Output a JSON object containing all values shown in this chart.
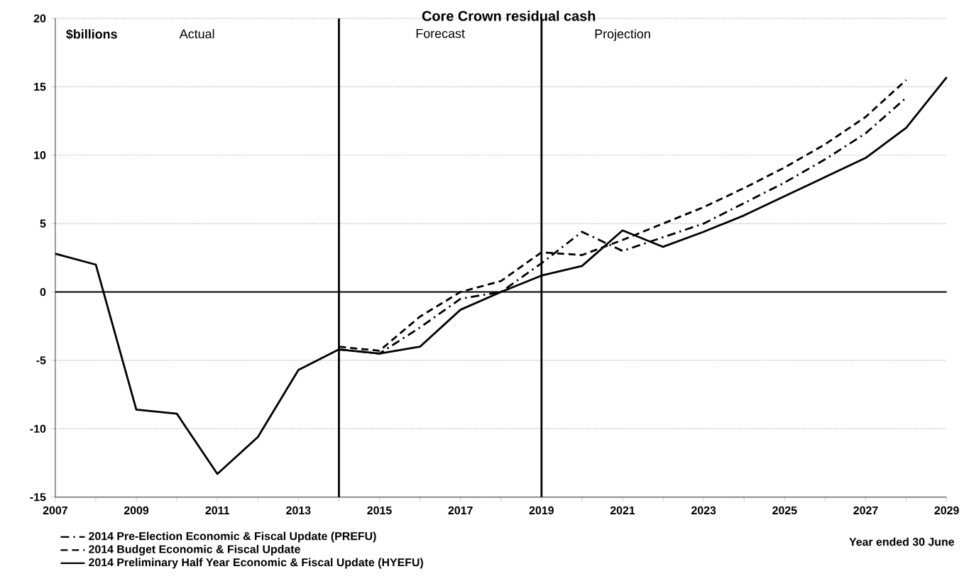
{
  "chart_data": {
    "type": "line",
    "title": "Core Crown residual cash",
    "ylabel": "$billions",
    "xlabel": "Year ended 30 June",
    "x": [
      2007,
      2008,
      2009,
      2010,
      2011,
      2012,
      2013,
      2014,
      2015,
      2016,
      2017,
      2018,
      2019,
      2020,
      2021,
      2022,
      2023,
      2024,
      2025,
      2026,
      2027,
      2028,
      2029
    ],
    "series": [
      {
        "name": "2014 Pre-Election Economic & Fiscal Update (PREFU)",
        "color": "#000000",
        "line_style": "dashdot",
        "values": [
          null,
          null,
          null,
          null,
          null,
          null,
          null,
          -4.2,
          -4.5,
          -2.6,
          -0.5,
          0.0,
          2.1,
          4.4,
          3.0,
          4.0,
          5.0,
          6.5,
          8.0,
          9.7,
          11.6,
          14.2,
          null
        ]
      },
      {
        "name": "2014 Budget Economic & Fiscal Update",
        "color": "#000000",
        "line_style": "dashed",
        "values": [
          null,
          null,
          null,
          null,
          null,
          null,
          null,
          -4.0,
          -4.3,
          -1.8,
          0.0,
          0.8,
          2.9,
          2.7,
          3.8,
          5.0,
          6.2,
          7.6,
          9.1,
          10.8,
          12.8,
          15.5,
          null
        ]
      },
      {
        "name": "2014 Preliminary  Half Year Economic & Fiscal Update (HYEFU)",
        "color": "#000000",
        "line_style": "solid",
        "values": [
          2.8,
          2.0,
          -8.6,
          -8.9,
          -13.3,
          -10.6,
          -5.7,
          -4.2,
          -4.5,
          -4.0,
          -1.3,
          0.0,
          1.2,
          1.9,
          4.5,
          3.3,
          4.4,
          5.6,
          7.0,
          8.4,
          9.8,
          12.0,
          15.7
        ]
      }
    ],
    "xlim": [
      2007,
      2029
    ],
    "xticks": [
      2007,
      {
        "value": 2008,
        "label": null
      },
      2009,
      {
        "value": 2010,
        "label": null
      },
      2011,
      {
        "value": 2012,
        "label": null
      },
      2013,
      {
        "value": 2014,
        "label": null
      },
      2015,
      {
        "value": 2016,
        "label": null
      },
      2017,
      {
        "value": 2018,
        "label": null
      },
      2019,
      {
        "value": 2020,
        "label": null
      },
      2021,
      {
        "value": 2022,
        "label": null
      },
      2023,
      {
        "value": 2024,
        "label": null
      },
      2025,
      {
        "value": 2026,
        "label": null
      },
      2027,
      {
        "value": 2028,
        "label": null
      },
      2029
    ],
    "ylim": [
      -15,
      20
    ],
    "yticks": [
      -15,
      -10,
      -5,
      0,
      5,
      10,
      15,
      20
    ],
    "grid": "y",
    "legend": "bottom left",
    "ref_lines": [
      {
        "axis": "y",
        "value": 0,
        "color": "#000000"
      },
      {
        "axis": "x",
        "value": 2014,
        "color": "#000000"
      },
      {
        "axis": "x",
        "value": 2019,
        "color": "#000000"
      }
    ],
    "annotations": [
      "Actual",
      "Forecast",
      "Projection"
    ]
  }
}
